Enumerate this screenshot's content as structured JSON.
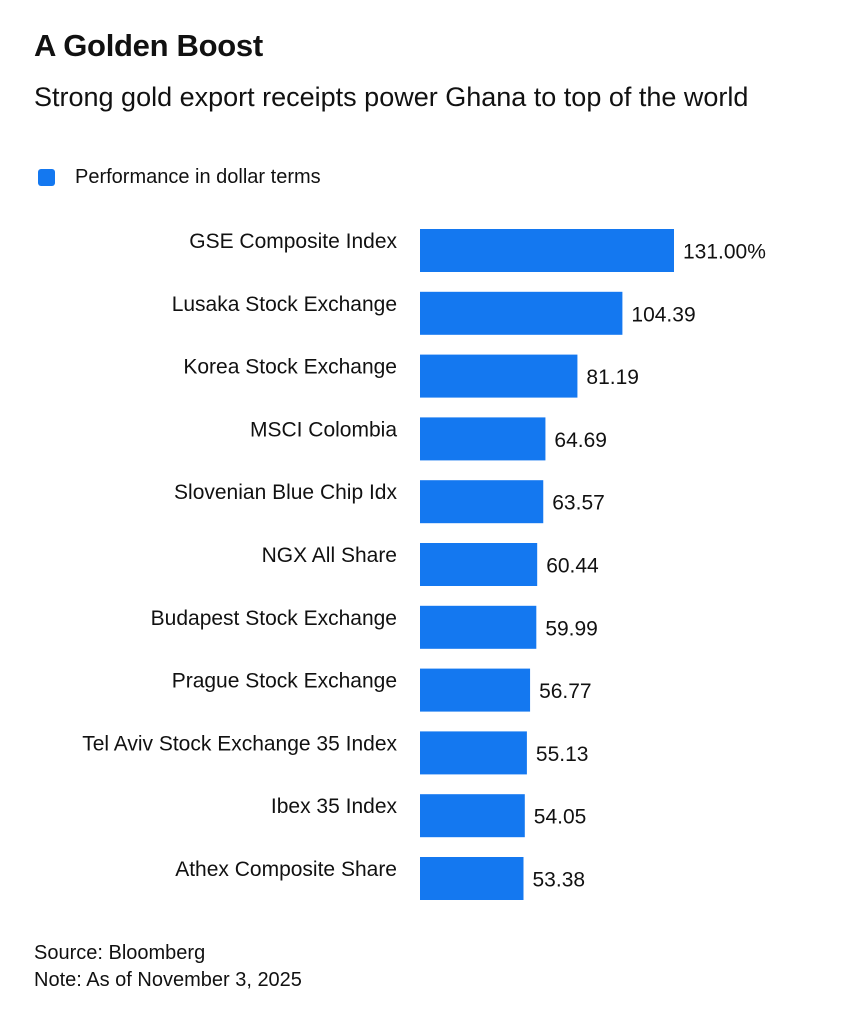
{
  "header": {
    "title": "A Golden Boost",
    "subtitle": "Strong gold export receipts power Ghana to top of the world"
  },
  "legend": {
    "label": "Performance in dollar terms",
    "color": "#1478f0"
  },
  "chart_data": {
    "type": "bar",
    "orientation": "horizontal",
    "categories": [
      "GSE Composite Index",
      "Lusaka Stock Exchange",
      "Korea Stock Exchange",
      "MSCI Colombia",
      "Slovenian Blue Chip Idx",
      "NGX All Share",
      "Budapest Stock Exchange",
      "Prague Stock Exchange",
      "Tel Aviv Stock Exchange 35 Index",
      "Ibex 35 Index",
      "Athex Composite Share"
    ],
    "series": [
      {
        "name": "Performance in dollar terms",
        "values": [
          131.0,
          104.39,
          81.19,
          64.69,
          63.57,
          60.44,
          59.99,
          56.77,
          55.13,
          54.05,
          53.38
        ]
      }
    ],
    "value_labels": [
      "131.00%",
      "104.39",
      "81.19",
      "64.69",
      "63.57",
      "60.44",
      "59.99",
      "56.77",
      "55.13",
      "54.05",
      "53.38"
    ],
    "xlim": [
      0,
      131
    ],
    "grid": false,
    "legend_position": "top-left",
    "bar_color": "#1478f0"
  },
  "footer": {
    "source": "Source: Bloomberg",
    "note": "Note: As of November 3, 2025"
  }
}
